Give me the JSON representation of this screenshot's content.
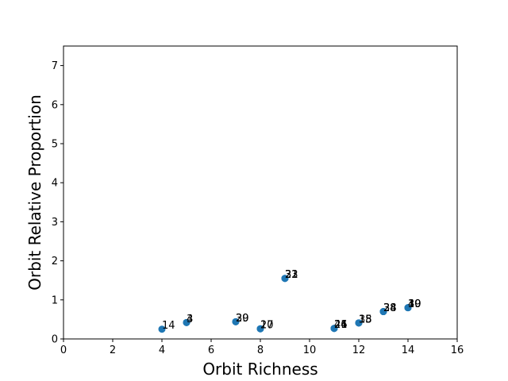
{
  "chart_data": {
    "type": "scatter",
    "title": "",
    "xlabel": "Orbit Richness",
    "ylabel": "Orbit Relative Proportion",
    "xlim": [
      0,
      16
    ],
    "ylim": [
      0,
      7.5
    ],
    "xticks": [
      0,
      2,
      4,
      6,
      8,
      10,
      12,
      14,
      16
    ],
    "yticks": [
      0,
      1,
      2,
      3,
      4,
      5,
      6,
      7
    ],
    "grid": false,
    "marker_color": "#1f77b4",
    "points": [
      {
        "x": 4,
        "y": 0.25,
        "label": "14"
      },
      {
        "x": 5,
        "y": 0.42,
        "label": "3"
      },
      {
        "x": 5,
        "y": 0.42,
        "label": "4"
      },
      {
        "x": 7,
        "y": 0.44,
        "label": "29"
      },
      {
        "x": 7,
        "y": 0.44,
        "label": "30"
      },
      {
        "x": 8,
        "y": 0.26,
        "label": "17"
      },
      {
        "x": 8,
        "y": 0.26,
        "label": "20"
      },
      {
        "x": 9,
        "y": 1.55,
        "label": "23"
      },
      {
        "x": 9,
        "y": 1.55,
        "label": "31"
      },
      {
        "x": 9,
        "y": 1.55,
        "label": "32"
      },
      {
        "x": 11,
        "y": 0.27,
        "label": "24"
      },
      {
        "x": 11,
        "y": 0.27,
        "label": "26"
      },
      {
        "x": 11,
        "y": 0.27,
        "label": "41"
      },
      {
        "x": 12,
        "y": 0.41,
        "label": "15"
      },
      {
        "x": 12,
        "y": 0.41,
        "label": "18"
      },
      {
        "x": 12,
        "y": 0.41,
        "label": "35"
      },
      {
        "x": 13,
        "y": 0.7,
        "label": "28"
      },
      {
        "x": 13,
        "y": 0.7,
        "label": "34"
      },
      {
        "x": 13,
        "y": 0.7,
        "label": "38"
      },
      {
        "x": 14,
        "y": 0.8,
        "label": "39"
      },
      {
        "x": 14,
        "y": 0.8,
        "label": "40"
      },
      {
        "x": 14,
        "y": 0.8,
        "label": "10"
      }
    ]
  }
}
